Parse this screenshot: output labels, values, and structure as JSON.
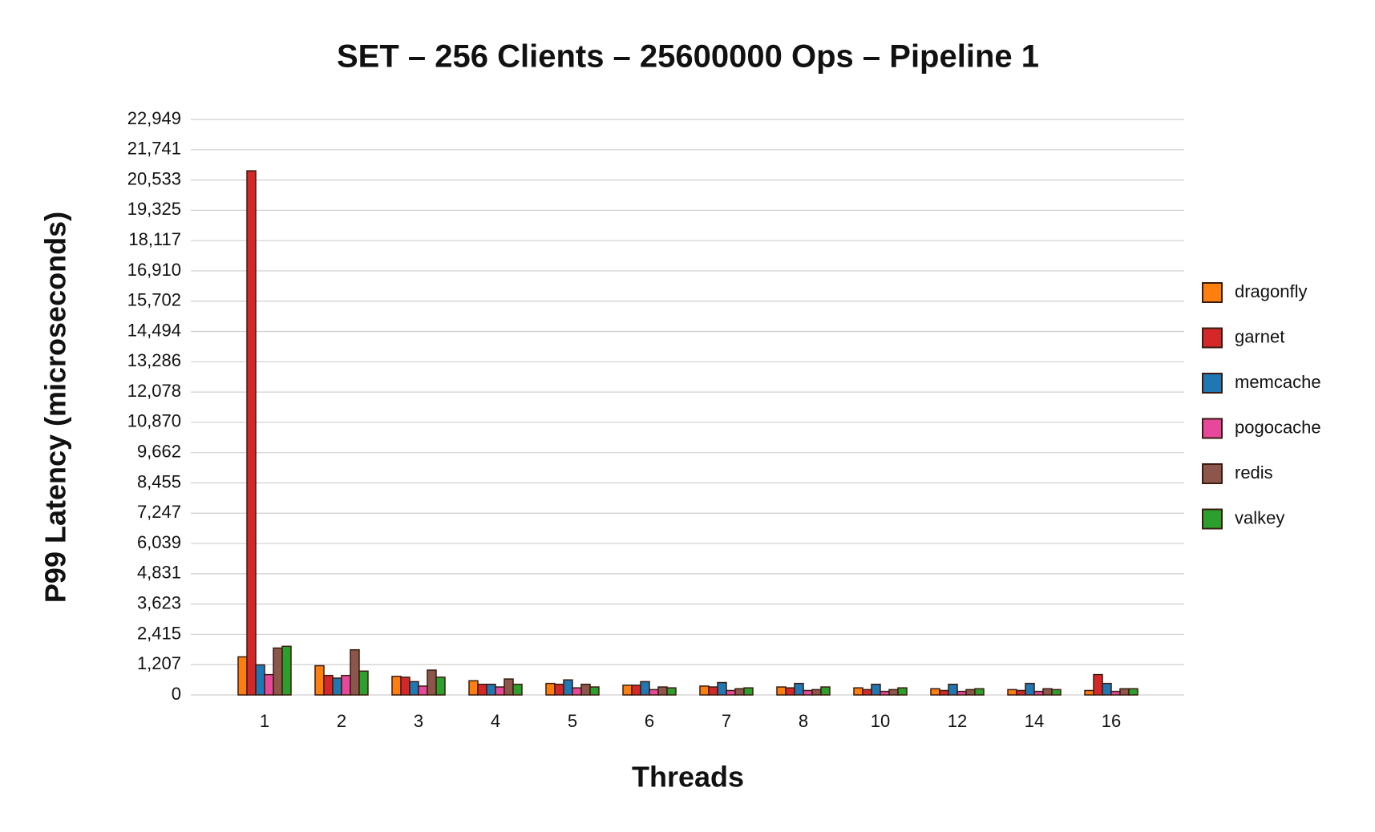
{
  "chart_data": {
    "type": "bar",
    "title": "SET – 256 Clients – 25600000 Ops – Pipeline 1",
    "x_label": "Threads",
    "y_label": "P99 Latency (microseconds)",
    "categories": [
      "1",
      "2",
      "3",
      "4",
      "5",
      "6",
      "7",
      "8",
      "10",
      "12",
      "14",
      "16"
    ],
    "series": [
      {
        "name": "dragonfly",
        "color": "#ff7f0e",
        "values": [
          1518,
          1165,
          740,
          565,
          459,
          388,
          353,
          318,
          282,
          247,
          212,
          177
        ]
      },
      {
        "name": "garnet",
        "color": "#d62728",
        "values": [
          20900,
          777,
          706,
          424,
          424,
          388,
          318,
          282,
          212,
          177,
          177,
          812
        ]
      },
      {
        "name": "memcache",
        "color": "#1f77b4",
        "values": [
          1200,
          670,
          530,
          424,
          600,
          530,
          494,
          459,
          424,
          424,
          459,
          459
        ]
      },
      {
        "name": "pogocache",
        "color": "#e7489b",
        "values": [
          812,
          777,
          353,
          318,
          282,
          212,
          177,
          177,
          141,
          141,
          141,
          141
        ]
      },
      {
        "name": "redis",
        "color": "#8c564b",
        "values": [
          1870,
          1800,
          990,
          636,
          424,
          318,
          247,
          212,
          212,
          212,
          247,
          247
        ]
      },
      {
        "name": "valkey",
        "color": "#2ca02c",
        "values": [
          1940,
          950,
          706,
          424,
          318,
          282,
          282,
          318,
          282,
          247,
          212,
          247
        ]
      }
    ],
    "ylim": [
      0,
      22949
    ],
    "yticks": [
      0,
      {
        "value": 1207,
        "label": "1,207"
      },
      {
        "value": 2415,
        "label": "2,415"
      },
      {
        "value": 3623,
        "label": "3,623"
      },
      {
        "value": 4831,
        "label": "4,831"
      },
      {
        "value": 6039,
        "label": "6,039"
      },
      {
        "value": 7247,
        "label": "7,247"
      },
      {
        "value": 8455,
        "label": "8,455"
      },
      {
        "value": 9662,
        "label": "9,662"
      },
      {
        "value": 10870,
        "label": "10,870"
      },
      {
        "value": 12078,
        "label": "12,078"
      },
      {
        "value": 13286,
        "label": "13,286"
      },
      {
        "value": 14494,
        "label": "14,494"
      },
      {
        "value": 15702,
        "label": "15,702"
      },
      {
        "value": 16910,
        "label": "16,910"
      },
      {
        "value": 18117,
        "label": "18,117"
      },
      {
        "value": 19325,
        "label": "19,325"
      },
      {
        "value": 20533,
        "label": "20,533"
      },
      {
        "value": 21741,
        "label": "21,741"
      },
      {
        "value": 22949,
        "label": "22,949"
      }
    ],
    "grid": true,
    "legend": "right"
  }
}
